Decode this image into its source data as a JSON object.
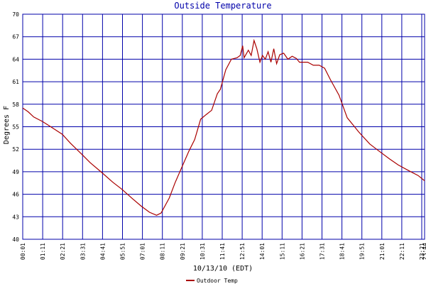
{
  "chart_data": {
    "type": "line",
    "title": "Outside Temperature",
    "xlabel": "10/13/10 (EDT)",
    "ylabel": "Degrees F",
    "ylim": [
      40,
      70
    ],
    "y_ticks": [
      "40",
      "43",
      "46",
      "49",
      "52",
      "55",
      "58",
      "61",
      "64",
      "67",
      "70"
    ],
    "x_ticks": [
      "00:01",
      "01:11",
      "02:21",
      "03:31",
      "04:41",
      "05:51",
      "07:01",
      "08:11",
      "09:21",
      "10:31",
      "11:41",
      "12:51",
      "14:01",
      "15:11",
      "16:21",
      "17:31",
      "18:41",
      "19:51",
      "21:01",
      "22:11",
      "23:21",
      "23:44"
    ],
    "grid": true,
    "legend_position": "bottom-left",
    "colors": {
      "series": "#aa0000",
      "grid": "#0000aa",
      "title": "#0000aa",
      "background": "#ffffff"
    },
    "series": [
      {
        "name": "Outdoor Temp",
        "points": [
          [
            "00:01",
            57.5
          ],
          [
            "00:20",
            57.0
          ],
          [
            "00:40",
            56.3
          ],
          [
            "01:11",
            55.7
          ],
          [
            "01:40",
            55.0
          ],
          [
            "02:21",
            54.0
          ],
          [
            "02:50",
            52.8
          ],
          [
            "03:31",
            51.3
          ],
          [
            "04:00",
            50.2
          ],
          [
            "04:41",
            48.9
          ],
          [
            "05:20",
            47.6
          ],
          [
            "05:51",
            46.7
          ],
          [
            "06:30",
            45.4
          ],
          [
            "07:01",
            44.4
          ],
          [
            "07:30",
            43.6
          ],
          [
            "07:55",
            43.2
          ],
          [
            "08:11",
            43.5
          ],
          [
            "08:40",
            45.5
          ],
          [
            "09:00",
            47.5
          ],
          [
            "09:21",
            49.3
          ],
          [
            "09:50",
            51.8
          ],
          [
            "10:10",
            53.3
          ],
          [
            "10:31",
            56.0
          ],
          [
            "10:50",
            56.6
          ],
          [
            "11:10",
            57.2
          ],
          [
            "11:30",
            59.4
          ],
          [
            "11:41",
            60.0
          ],
          [
            "12:00",
            62.6
          ],
          [
            "12:20",
            64.0
          ],
          [
            "12:40",
            64.2
          ],
          [
            "12:51",
            64.5
          ],
          [
            "13:00",
            65.8
          ],
          [
            "13:05",
            64.2
          ],
          [
            "13:20",
            65.2
          ],
          [
            "13:30",
            64.5
          ],
          [
            "13:40",
            66.5
          ],
          [
            "13:50",
            65.4
          ],
          [
            "14:01",
            63.6
          ],
          [
            "14:10",
            64.5
          ],
          [
            "14:20",
            64.0
          ],
          [
            "14:30",
            65.0
          ],
          [
            "14:40",
            63.6
          ],
          [
            "14:50",
            65.4
          ],
          [
            "15:00",
            63.4
          ],
          [
            "15:11",
            64.6
          ],
          [
            "15:25",
            64.8
          ],
          [
            "15:40",
            64.0
          ],
          [
            "15:55",
            64.4
          ],
          [
            "16:10",
            64.1
          ],
          [
            "16:21",
            63.6
          ],
          [
            "16:50",
            63.6
          ],
          [
            "17:10",
            63.2
          ],
          [
            "17:31",
            63.2
          ],
          [
            "17:50",
            62.8
          ],
          [
            "18:10",
            61.3
          ],
          [
            "18:41",
            59.2
          ],
          [
            "19:10",
            56.2
          ],
          [
            "19:51",
            54.3
          ],
          [
            "20:30",
            52.7
          ],
          [
            "21:01",
            51.8
          ],
          [
            "21:40",
            50.7
          ],
          [
            "22:11",
            49.9
          ],
          [
            "22:50",
            49.1
          ],
          [
            "23:21",
            48.5
          ],
          [
            "23:44",
            47.8
          ]
        ]
      }
    ]
  }
}
